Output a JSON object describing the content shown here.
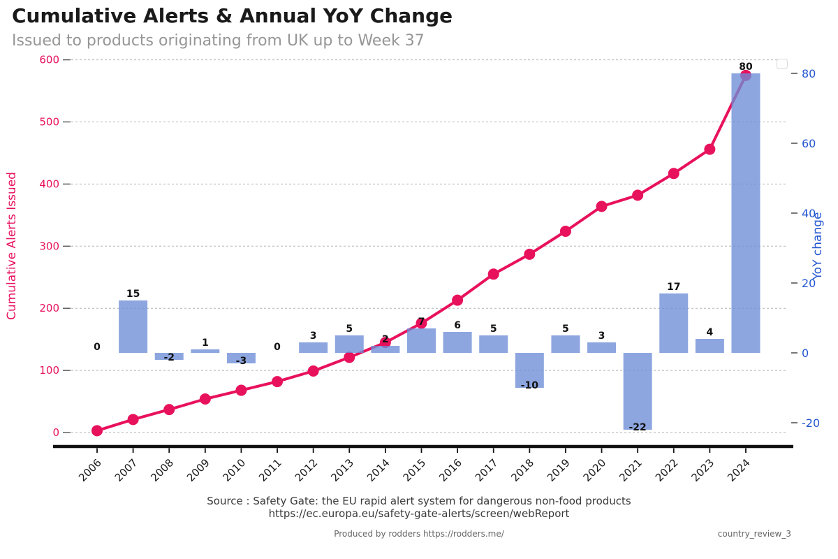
{
  "header": {
    "title": "Cumulative Alerts & Annual YoY Change",
    "subtitle": "Issued to products originating from UK up to Week 37"
  },
  "chart_data": {
    "type": "bar+line combo, dual axis",
    "categories": [
      "2006",
      "2007",
      "2008",
      "2009",
      "2010",
      "2011",
      "2012",
      "2013",
      "2014",
      "2015",
      "2016",
      "2017",
      "2018",
      "2019",
      "2020",
      "2021",
      "2022",
      "2023",
      "2024"
    ],
    "series": [
      {
        "name": "Cumulative Alerts Issued",
        "type": "line",
        "axis": "left",
        "color": "#e8115c",
        "values": [
          3,
          21,
          37,
          54,
          68,
          82,
          99,
          121,
          145,
          176,
          213,
          255,
          287,
          324,
          364,
          382,
          417,
          456,
          575
        ]
      },
      {
        "name": "YoY change",
        "type": "bar",
        "axis": "right",
        "color": "#6d8dd7",
        "opacity": 0.78,
        "values": [
          0,
          15,
          -2,
          1,
          -3,
          0,
          3,
          5,
          2,
          7,
          6,
          5,
          -10,
          5,
          3,
          -22,
          17,
          4,
          80
        ],
        "labels": [
          "0",
          "15",
          "-2",
          "1",
          "-3",
          "0",
          "3",
          "5",
          "2",
          "7",
          "6",
          "5",
          "-10",
          "5",
          "3",
          "-22",
          "17",
          "4",
          "80"
        ]
      }
    ],
    "left_axis": {
      "label": "Cumulative Alerts Issued",
      "color": "#e8115c",
      "ticks": [
        0,
        100,
        200,
        300,
        400,
        500,
        600
      ],
      "range": [
        0,
        600
      ]
    },
    "right_axis": {
      "label": "YoY change",
      "color": "#2356d0",
      "ticks": [
        -20,
        0,
        20,
        40,
        60,
        80
      ],
      "range": [
        -27,
        83
      ]
    },
    "grid": true,
    "grid_style": "horizontal dashed gray, drawn for left-axis ticks",
    "legend": "empty rounded box, top-right"
  },
  "footer": {
    "source_line1": "Source : Safety Gate: the EU rapid alert system for dangerous non-food products",
    "source_line2": "https://ec.europa.eu/safety-gate-alerts/screen/webReport",
    "produced_by": "Produced by rodders https://rodders.me/",
    "tag": "country_review_3"
  }
}
